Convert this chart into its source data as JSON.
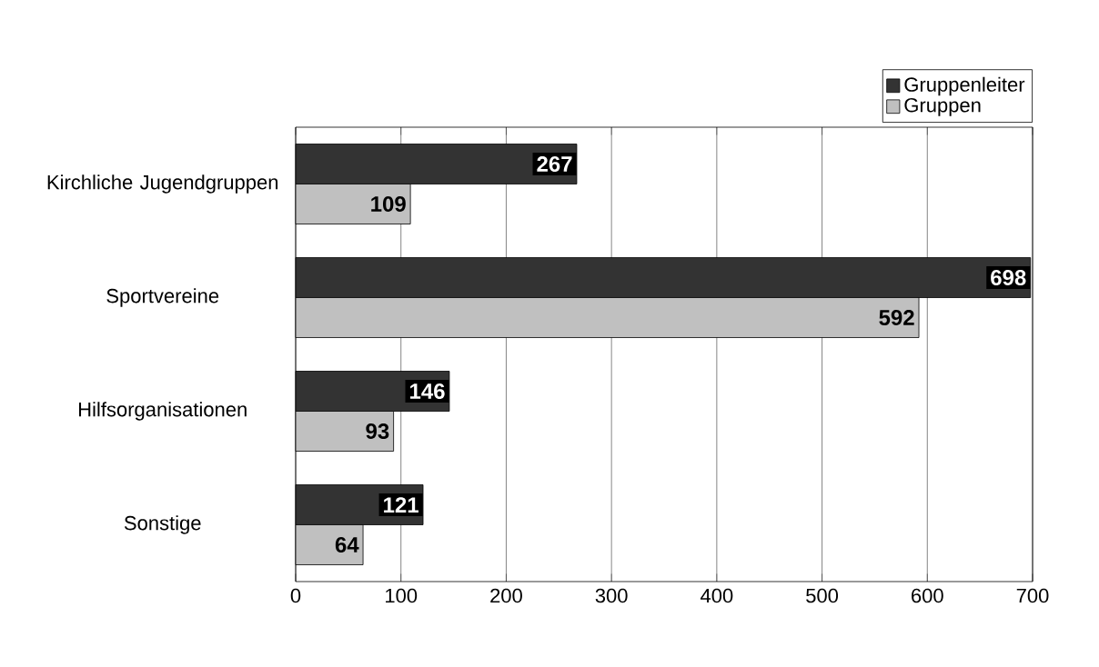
{
  "chart_data": {
    "type": "bar",
    "orientation": "horizontal",
    "categories": [
      "Kirchliche Jugendgruppen",
      "Sportvereine",
      "Hilfsorganisationen",
      "Sonstige"
    ],
    "series": [
      {
        "name": "Gruppenleiter",
        "color": "#333333",
        "values": [
          267,
          698,
          146,
          121
        ]
      },
      {
        "name": "Gruppen",
        "color": "#c0c0c0",
        "values": [
          109,
          592,
          93,
          64
        ]
      }
    ],
    "xlim": [
      0,
      700
    ],
    "xticks": [
      0,
      100,
      200,
      300,
      400,
      500,
      600,
      700
    ],
    "grid": "x",
    "legend": "top right",
    "data_labels": true
  }
}
